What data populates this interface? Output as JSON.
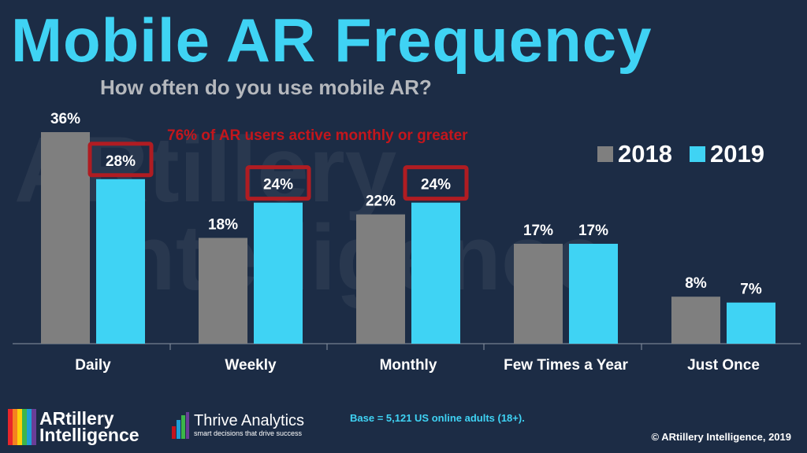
{
  "header": {
    "title": "Mobile AR Frequency",
    "subtitle": "How often do you use mobile AR?"
  },
  "watermark": {
    "line1": "ARtillery",
    "line2": "Intelligence"
  },
  "annotation": "76% of AR users active monthly or greater",
  "chart_data": {
    "type": "bar",
    "title": "Mobile AR Frequency",
    "subtitle": "How often do you use mobile AR?",
    "categories": [
      "Daily",
      "Weekly",
      "Monthly",
      "Few Times a Year",
      "Just Once"
    ],
    "series": [
      {
        "name": "2018",
        "color": "#7f7f7f",
        "values": [
          36,
          18,
          22,
          17,
          8
        ]
      },
      {
        "name": "2019",
        "color": "#3fd3f4",
        "values": [
          28,
          24,
          24,
          17,
          7
        ]
      }
    ],
    "value_suffix": "%",
    "highlighted": [
      {
        "series": "2019",
        "category": "Daily"
      },
      {
        "series": "2019",
        "category": "Weekly"
      },
      {
        "series": "2019",
        "category": "Monthly"
      }
    ],
    "highlight_color": "#b01c22",
    "ylim": [
      0,
      36
    ],
    "legend": "top-right",
    "xlabel": "",
    "ylabel": ""
  },
  "footer": {
    "base_note": "Base = 5,121 US online adults (18+).",
    "copyright": "© ARtillery Intelligence, 2019"
  },
  "logos": {
    "artillery": {
      "line1": "ARtillery",
      "line2": "Intelligence"
    },
    "thrive": {
      "name": "Thrive Analytics",
      "tagline": "smart decisions that drive success"
    }
  },
  "colors": {
    "background": "#1c2c45",
    "accent": "#3fd3f4",
    "gray": "#7f7f7f",
    "annotation": "#c4161c"
  }
}
